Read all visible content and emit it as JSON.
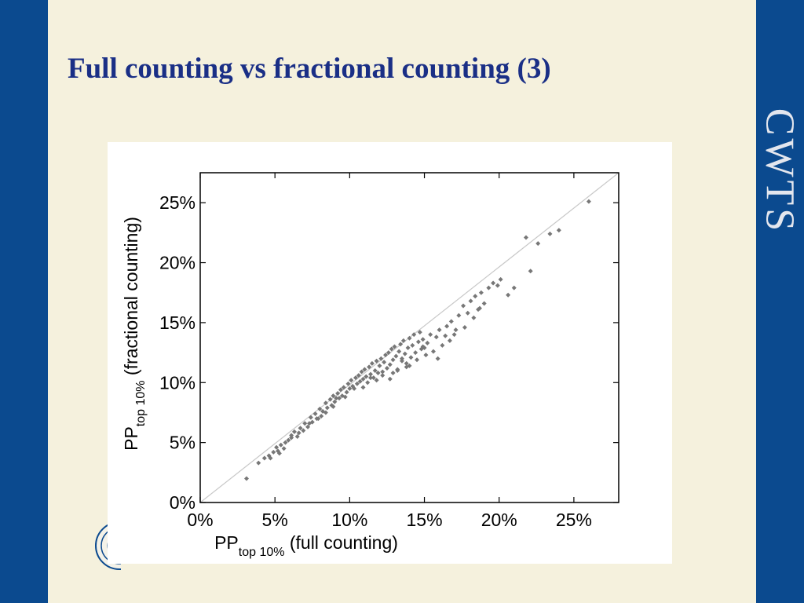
{
  "slide": {
    "title": "Full counting vs fractional counting (3)",
    "logo_text": "CWTS",
    "colors": {
      "band": "#0b4a8f",
      "background": "#f5f1dd",
      "title": "#1a2f86"
    },
    "seal_icon": "university-seal-icon"
  },
  "chart_data": {
    "type": "scatter",
    "title": "",
    "xlabel": {
      "main": "PP",
      "sub": "top 10%",
      "rest": " (full counting)"
    },
    "ylabel": {
      "main": "PP",
      "sub": "top 10%",
      "rest": " (fractional counting)"
    },
    "xlim": [
      0,
      28
    ],
    "ylim": [
      0,
      27.5
    ],
    "xticks": [
      0,
      5,
      10,
      15,
      20,
      25
    ],
    "yticks": [
      0,
      5,
      10,
      15,
      20,
      25
    ],
    "xtick_labels": [
      "0%",
      "5%",
      "10%",
      "15%",
      "20%",
      "25%"
    ],
    "ytick_labels": [
      "0%",
      "5%",
      "10%",
      "15%",
      "20%",
      "25%"
    ],
    "grid": false,
    "reference_line": {
      "from": [
        0,
        0
      ],
      "to": [
        28,
        28
      ]
    },
    "marker_color": "#777777",
    "line_color": "#c8c8c8",
    "series": [
      {
        "x": [
          3.1,
          3.9,
          4.3,
          4.6,
          4.9,
          5.1,
          5.2,
          5.4,
          5.6,
          5.7,
          5.9,
          6.1,
          6.3,
          6.5,
          6.7,
          6.9,
          7.0,
          7.2,
          7.4,
          7.5,
          7.7,
          7.8,
          8.0,
          8.1,
          8.2,
          8.4,
          8.5,
          8.7,
          8.8,
          8.9,
          9.0,
          9.2,
          9.3,
          9.4,
          9.5,
          9.6,
          9.8,
          9.9,
          10.0,
          10.1,
          10.2,
          10.4,
          10.5,
          10.6,
          10.7,
          10.8,
          10.9,
          11.0,
          11.1,
          11.2,
          11.3,
          11.4,
          11.5,
          11.6,
          11.7,
          11.8,
          11.9,
          12.0,
          12.1,
          12.2,
          12.3,
          12.4,
          12.5,
          12.6,
          12.7,
          12.8,
          12.9,
          13.0,
          13.1,
          13.2,
          13.3,
          13.4,
          13.5,
          13.6,
          13.7,
          13.8,
          13.9,
          14.0,
          14.1,
          14.2,
          14.3,
          14.4,
          14.5,
          14.6,
          14.7,
          14.8,
          14.9,
          15.0,
          15.2,
          15.4,
          15.6,
          15.8,
          16.0,
          16.2,
          16.5,
          16.8,
          17.0,
          17.3,
          17.6,
          17.9,
          18.1,
          18.4,
          18.6,
          18.8,
          19.0,
          19.3,
          19.6,
          20.1,
          21.8,
          22.6,
          23.4,
          24.0,
          26.0,
          15.9,
          14.0,
          9.1,
          12.7,
          10.9,
          8.4,
          13.2,
          11.8,
          7.3,
          6.1,
          15.1,
          16.7,
          18.3,
          17.7,
          21.0,
          22.1,
          20.6,
          19.9,
          14.9,
          13.5,
          12.2,
          9.7,
          8.9,
          11.4,
          10.3,
          12.9,
          13.8,
          16.4,
          17.1,
          18.7,
          7.9,
          6.6,
          5.3,
          4.7
        ],
        "y": [
          2.0,
          3.3,
          3.7,
          3.9,
          4.2,
          4.6,
          4.3,
          4.8,
          4.5,
          5.0,
          5.2,
          5.4,
          5.9,
          5.5,
          6.2,
          6.0,
          6.6,
          6.3,
          7.1,
          6.7,
          7.4,
          7.0,
          7.8,
          7.2,
          7.6,
          8.3,
          7.9,
          8.6,
          8.1,
          8.9,
          8.4,
          9.1,
          8.7,
          9.4,
          8.9,
          9.6,
          9.2,
          9.9,
          9.5,
          10.2,
          9.7,
          10.4,
          9.9,
          10.6,
          10.1,
          10.9,
          10.3,
          11.1,
          10.5,
          10.0,
          11.3,
          10.7,
          11.6,
          10.4,
          11.0,
          11.8,
          10.8,
          11.4,
          12.0,
          10.6,
          11.7,
          12.3,
          11.2,
          12.5,
          11.5,
          12.8,
          11.9,
          13.0,
          12.2,
          11.1,
          12.6,
          13.2,
          12.0,
          13.5,
          12.4,
          11.6,
          12.9,
          13.7,
          12.1,
          13.1,
          14.0,
          12.5,
          11.9,
          13.4,
          14.2,
          12.8,
          13.6,
          12.9,
          13.3,
          14.0,
          12.6,
          13.8,
          14.4,
          13.1,
          14.7,
          15.1,
          14.0,
          15.6,
          16.4,
          15.8,
          16.8,
          17.2,
          16.1,
          17.5,
          16.6,
          17.9,
          18.3,
          18.6,
          22.1,
          21.6,
          22.4,
          22.7,
          25.1,
          12.0,
          11.4,
          8.7,
          10.3,
          9.6,
          7.5,
          11.0,
          10.2,
          6.6,
          5.6,
          12.3,
          13.5,
          15.4,
          14.6,
          17.9,
          19.3,
          17.3,
          18.1,
          13.0,
          11.8,
          10.9,
          8.8,
          8.0,
          10.4,
          9.5,
          10.8,
          11.3,
          13.9,
          14.4,
          16.2,
          7.0,
          5.8,
          4.1,
          3.7
        ]
      }
    ]
  }
}
